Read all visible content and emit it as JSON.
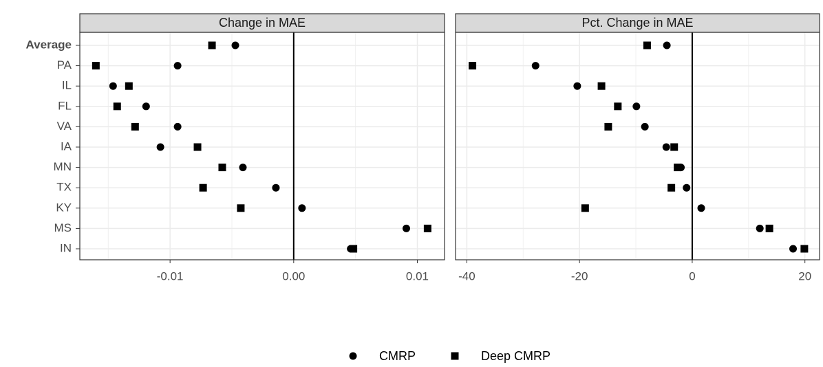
{
  "chart_data": [
    {
      "type": "dot",
      "title": "Change in MAE",
      "categories": [
        "Average",
        "PA",
        "IL",
        "FL",
        "VA",
        "IA",
        "MN",
        "TX",
        "KY",
        "MS",
        "IN"
      ],
      "bold_category_index": 0,
      "series": [
        {
          "name": "CMRP",
          "marker": "circle",
          "color": "#000000",
          "values": [
            -0.00472,
            -0.00939,
            -0.01461,
            -0.01194,
            -0.00939,
            -0.01078,
            -0.00411,
            -0.00144,
            0.00067,
            0.00911,
            0.00461
          ]
        },
        {
          "name": "Deep CMRP",
          "marker": "square",
          "color": "#000000",
          "values": [
            -0.00661,
            -0.016,
            -0.01333,
            -0.01428,
            -0.01283,
            -0.00778,
            -0.00578,
            -0.00733,
            -0.00428,
            0.01083,
            0.00483
          ]
        }
      ],
      "xlim": [
        -0.0173,
        0.0122
      ],
      "xticks": [
        -0.01,
        {
          "value": 0,
          "label": "0.00"
        },
        0.01
      ],
      "xminor": [
        -0.015,
        -0.005,
        0.005
      ],
      "vline": 0,
      "grid": true
    },
    {
      "type": "dot",
      "title": "Pct. Change in MAE",
      "series": [
        {
          "marker": "circle",
          "color": "#000000",
          "values": [
            -4.5,
            -27.8,
            -20.4,
            -9.9,
            -8.4,
            -4.6,
            -2,
            -1,
            1.6,
            12,
            17.9
          ]
        },
        {
          "marker": "square",
          "color": "#000000",
          "values": [
            -8,
            -39,
            -16.1,
            -13.2,
            -14.9,
            -3.2,
            -2.6,
            -3.7,
            -19,
            13.7,
            19.9
          ]
        }
      ],
      "xlim": [
        -42,
        22.6
      ],
      "xticks": [
        -40,
        -20,
        0,
        20
      ],
      "xminor": [
        -30,
        -10,
        10
      ],
      "vline": 0,
      "grid": true
    }
  ]
}
